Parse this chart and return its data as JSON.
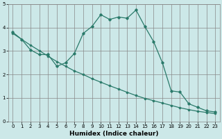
{
  "title": "",
  "xlabel": "Humidex (Indice chaleur)",
  "bg_color": "#cce8e8",
  "grid_color": "#888888",
  "line_color": "#2a7a6a",
  "xlim": [
    -0.5,
    23.5
  ],
  "ylim": [
    0,
    5
  ],
  "xticks": [
    0,
    1,
    2,
    3,
    4,
    5,
    6,
    7,
    8,
    9,
    10,
    11,
    12,
    13,
    14,
    15,
    16,
    17,
    18,
    19,
    20,
    21,
    22,
    23
  ],
  "yticks": [
    0,
    1,
    2,
    3,
    4,
    5
  ],
  "line1_x": [
    0,
    1,
    2,
    3,
    4,
    5,
    6,
    7,
    8,
    9,
    10,
    11,
    12,
    13,
    14,
    15,
    16,
    17,
    18,
    19,
    20,
    21,
    22,
    23
  ],
  "line1_y": [
    3.8,
    3.5,
    3.05,
    2.85,
    2.85,
    2.35,
    2.5,
    2.9,
    3.75,
    4.05,
    4.55,
    4.35,
    4.45,
    4.4,
    4.75,
    4.05,
    3.4,
    2.5,
    1.3,
    1.25,
    0.75,
    0.6,
    0.45,
    0.4
  ],
  "line2_x": [
    0,
    1,
    2,
    3,
    4,
    5,
    6,
    7,
    8,
    9,
    10,
    11,
    12,
    13,
    14,
    15,
    16,
    17,
    18,
    19,
    20,
    21,
    22,
    23
  ],
  "line2_y": [
    3.75,
    3.5,
    3.25,
    3.02,
    2.78,
    2.55,
    2.35,
    2.15,
    2.0,
    1.82,
    1.67,
    1.52,
    1.38,
    1.24,
    1.1,
    0.98,
    0.88,
    0.78,
    0.68,
    0.58,
    0.5,
    0.43,
    0.38,
    0.33
  ],
  "xlabel_fontsize": 6.5,
  "tick_fontsize": 5.0
}
